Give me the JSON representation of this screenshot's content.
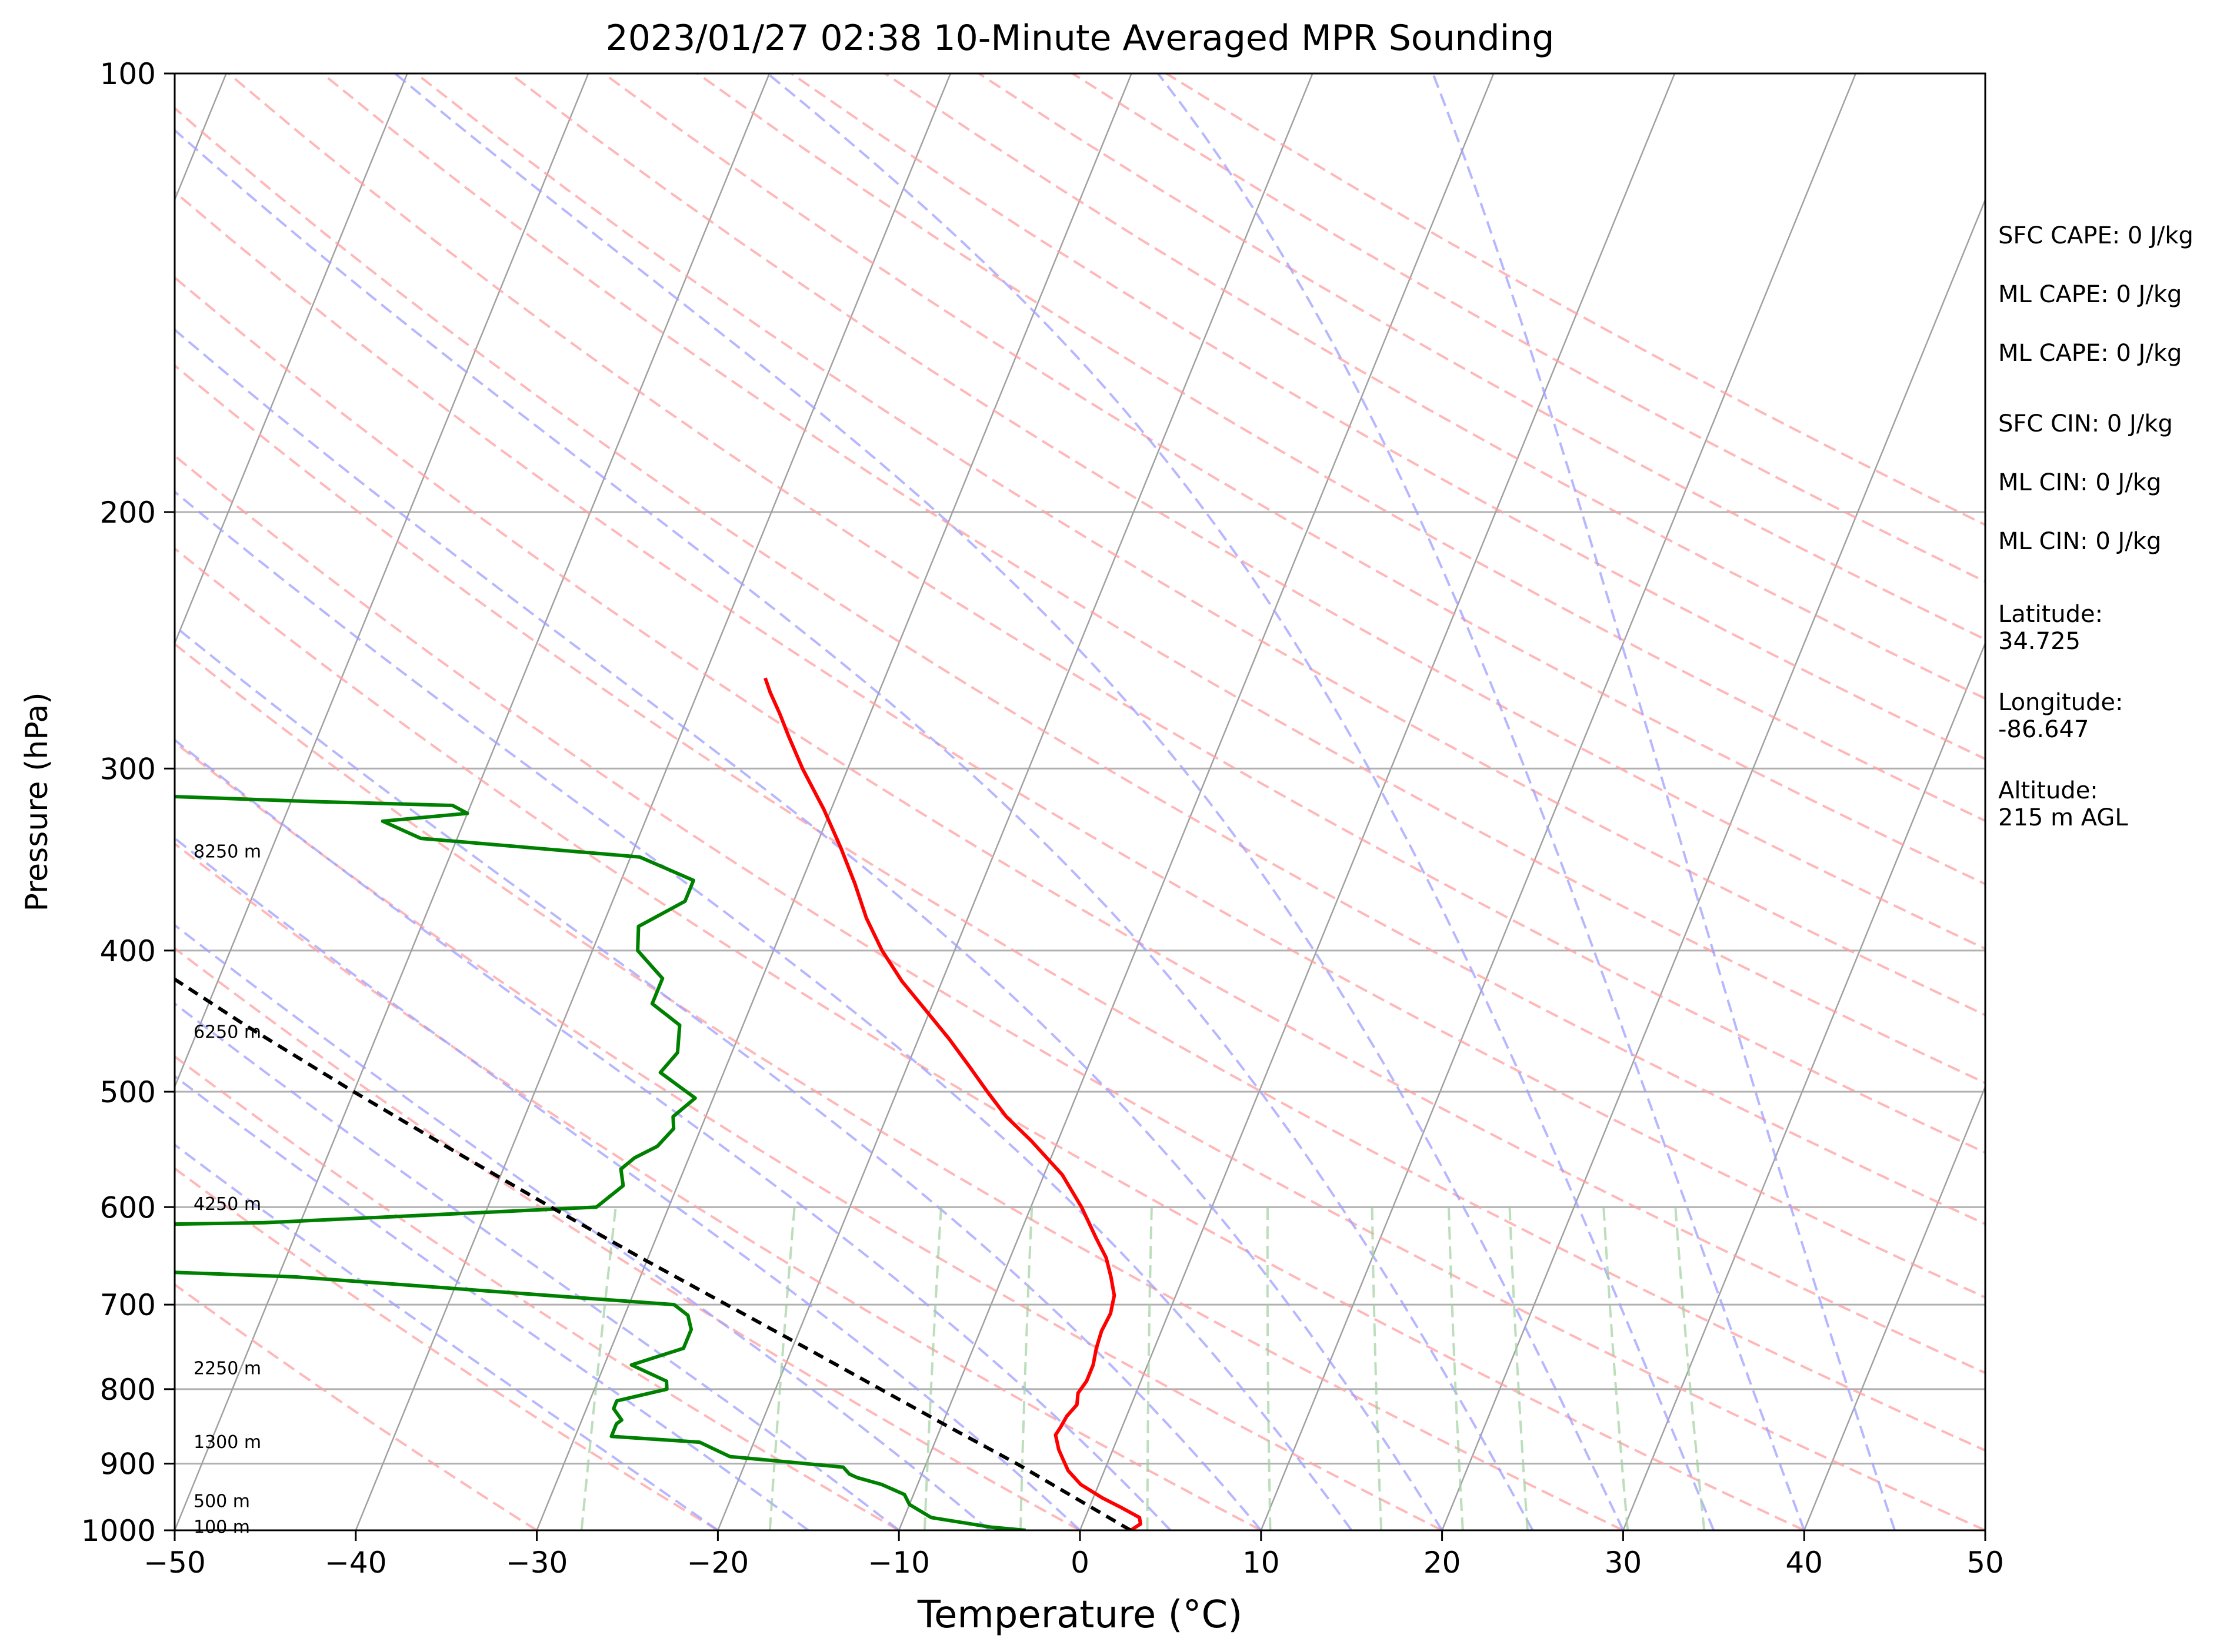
{
  "chart_data": {
    "type": "line",
    "subtype": "skew-t log-p sounding",
    "title": "2023/01/27 02:38 10-Minute Averaged MPR Sounding",
    "xlabel": "Temperature (°C)",
    "ylabel": "Pressure (hPa)",
    "xlim": [
      -50,
      50
    ],
    "ylim": [
      1000,
      100
    ],
    "y_scale": "log",
    "x_ticks": [
      "−50",
      "−40",
      "−30",
      "−20",
      "−10",
      "0",
      "10",
      "20",
      "30",
      "40",
      "50"
    ],
    "x_tick_values": [
      -50,
      -40,
      -30,
      -20,
      -10,
      0,
      10,
      20,
      30,
      40,
      50
    ],
    "y_ticks": [
      "100",
      "200",
      "300",
      "400",
      "500",
      "600",
      "700",
      "800",
      "900",
      "1000"
    ],
    "y_tick_values": [
      100,
      200,
      300,
      400,
      500,
      600,
      700,
      800,
      900,
      1000
    ],
    "grid": true,
    "reference_lines": {
      "isotherms_color": "#a0a0a0",
      "dry_adiabats_color": "#ff9f9f",
      "moist_adiabats_color": "#9f9fff",
      "mixing_ratio_color": "#9fd09f"
    },
    "series": [
      {
        "color": "#ff0000",
        "points": [
          [
            1000,
            2.8
          ],
          [
            990,
            3.2
          ],
          [
            980,
            3.0
          ],
          [
            965,
            1.8
          ],
          [
            950,
            0.5
          ],
          [
            930,
            -1.0
          ],
          [
            910,
            -2.0
          ],
          [
            895,
            -2.5
          ],
          [
            880,
            -3.0
          ],
          [
            860,
            -3.5
          ],
          [
            850,
            -3.4
          ],
          [
            835,
            -3.3
          ],
          [
            820,
            -3.0
          ],
          [
            805,
            -3.2
          ],
          [
            790,
            -3.0
          ],
          [
            770,
            -3.0
          ],
          [
            750,
            -3.2
          ],
          [
            730,
            -3.3
          ],
          [
            710,
            -3.2
          ],
          [
            690,
            -3.4
          ],
          [
            670,
            -4.0
          ],
          [
            650,
            -4.7
          ],
          [
            630,
            -5.7
          ],
          [
            600,
            -7.2
          ],
          [
            570,
            -9.0
          ],
          [
            540,
            -11.5
          ],
          [
            520,
            -13.4
          ],
          [
            500,
            -15.0
          ],
          [
            480,
            -16.6
          ],
          [
            460,
            -18.3
          ],
          [
            440,
            -20.2
          ],
          [
            420,
            -22.2
          ],
          [
            400,
            -24.0
          ],
          [
            380,
            -25.6
          ],
          [
            360,
            -27.0
          ],
          [
            340,
            -28.6
          ],
          [
            320,
            -30.4
          ],
          [
            300,
            -32.5
          ],
          [
            285,
            -34.0
          ],
          [
            275,
            -35.0
          ],
          [
            266,
            -36.0
          ],
          [
            260,
            -36.6
          ]
        ]
      },
      {
        "color": "#008000",
        "points": [
          [
            1000,
            -3.0
          ],
          [
            995,
            -5.0
          ],
          [
            980,
            -8.5
          ],
          [
            960,
            -10.0
          ],
          [
            945,
            -10.5
          ],
          [
            930,
            -12.0
          ],
          [
            920,
            -13.5
          ],
          [
            915,
            -14.0
          ],
          [
            905,
            -14.5
          ],
          [
            898,
            -17.5
          ],
          [
            890,
            -21.0
          ],
          [
            870,
            -23.0
          ],
          [
            862,
            -28.0
          ],
          [
            845,
            -28.0
          ],
          [
            840,
            -27.8
          ],
          [
            825,
            -28.5
          ],
          [
            815,
            -28.5
          ],
          [
            800,
            -26.0
          ],
          [
            790,
            -26.2
          ],
          [
            770,
            -28.5
          ],
          [
            750,
            -26.0
          ],
          [
            728,
            -26.0
          ],
          [
            712,
            -26.5
          ],
          [
            700,
            -27.5
          ],
          [
            670,
            -49.0
          ],
          [
            665,
            -56.0
          ],
          [
            650,
            -72.0
          ],
          [
            620,
            -70.0
          ],
          [
            615,
            -52.0
          ],
          [
            600,
            -34.0
          ],
          [
            580,
            -33.0
          ],
          [
            565,
            -33.5
          ],
          [
            555,
            -33.0
          ],
          [
            545,
            -32.0
          ],
          [
            530,
            -31.5
          ],
          [
            520,
            -31.8
          ],
          [
            505,
            -31.0
          ],
          [
            485,
            -33.5
          ],
          [
            470,
            -33.0
          ],
          [
            450,
            -33.5
          ],
          [
            435,
            -35.5
          ],
          [
            418,
            -35.5
          ],
          [
            400,
            -37.5
          ],
          [
            385,
            -38.0
          ],
          [
            370,
            -36.0
          ],
          [
            358,
            -36.0
          ],
          [
            345,
            -39.5
          ],
          [
            335,
            -52.0
          ],
          [
            326,
            -54.5
          ],
          [
            322,
            -50.0
          ],
          [
            318,
            -51.0
          ],
          [
            316,
            -59.0
          ],
          [
            310,
            -78.0
          ],
          [
            255,
            -87.0
          ],
          [
            252,
            -91.0
          ],
          [
            250,
            -96.0
          ]
        ]
      },
      {
        "style": "dashed",
        "color": "#000000",
        "points": [
          [
            1000,
            2.8
          ],
          [
            950,
            -1.0
          ],
          [
            900,
            -5.0
          ],
          [
            850,
            -9.5
          ],
          [
            800,
            -14.2
          ],
          [
            750,
            -19.2
          ],
          [
            700,
            -24.6
          ],
          [
            650,
            -30.4
          ],
          [
            600,
            -36.5
          ],
          [
            550,
            -43.0
          ],
          [
            500,
            -50.0
          ],
          [
            450,
            -57.5
          ],
          [
            400,
            -65.5
          ],
          [
            350,
            -74.0
          ],
          [
            300,
            -83.0
          ],
          [
            280,
            -87.0
          ]
        ]
      }
    ],
    "height_labels": [
      {
        "text": "8250 m",
        "p": 342
      },
      {
        "text": "6250 m",
        "p": 455
      },
      {
        "text": "4250 m",
        "p": 597
      },
      {
        "text": "2250 m",
        "p": 774
      },
      {
        "text": "1300 m",
        "p": 870
      },
      {
        "text": "500 m",
        "p": 955
      },
      {
        "text": "100 m",
        "p": 995
      }
    ],
    "annotations": [
      {
        "text": "SFC CAPE: 0 J/kg"
      },
      {
        "text": "ML CAPE: 0 J/kg"
      },
      {
        "text": "ML CAPE: 0 J/kg"
      },
      {
        "text": "SFC CIN: 0 J/kg"
      },
      {
        "text": "ML CIN: 0 J/kg"
      },
      {
        "text": "ML CIN: 0 J/kg"
      },
      {
        "text": "Latitude:",
        "value": "34.725"
      },
      {
        "text": "Longitude:",
        "value": "-86.647"
      },
      {
        "text": "Altitude:",
        "value": "215 m AGL"
      }
    ]
  }
}
